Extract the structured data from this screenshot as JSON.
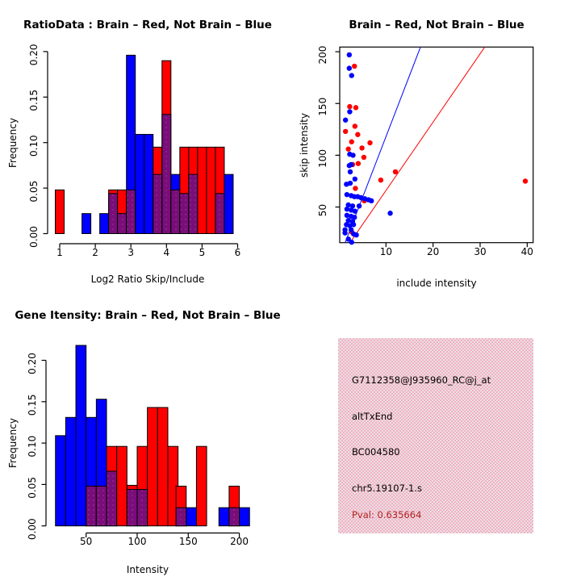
{
  "colors": {
    "brain_red": "#ff0000",
    "not_brain_blue": "#0000ff",
    "overlap_purple": "#7a0d7a",
    "overlap_dot": "#9b3f9b",
    "axis_black": "#000000",
    "info_bg_pink": "#f5afc4",
    "info_bg_gray": "#e7e2e4",
    "pval_text": "#b22222"
  },
  "info": {
    "lines": [
      "G7112358@J935960_RC@j_at",
      "altTxEnd",
      "BC004580",
      "chr5.19107-1.s"
    ],
    "pval": "Pval: 0.635664"
  },
  "chart_data": [
    {
      "type": "bar",
      "subtype": "overlaid-histograms",
      "title": "RatioData : Brain – Red, Not Brain – Blue",
      "xlabel": "Log2 Ratio Skip/Include",
      "ylabel": "Frequency",
      "legend": {
        "red": "Brain",
        "blue": "Not Brain"
      },
      "xlim": [
        0.66,
        6.1
      ],
      "ylim": [
        0,
        0.2
      ],
      "xticks": {
        "values": [
          1,
          2,
          3,
          4,
          5,
          6
        ],
        "labels": [
          "1",
          "2",
          "3",
          "4",
          "5",
          "6"
        ]
      },
      "yticks": {
        "values": [
          0,
          0.05,
          0.1,
          0.15,
          0.2
        ],
        "labels": [
          "0.00",
          "0.05",
          "0.10",
          "0.15",
          "0.20"
        ]
      },
      "bin_width": 0.25,
      "bins": [
        {
          "x0": 0.875,
          "x1": 1.125,
          "red": 0.048,
          "blue": 0
        },
        {
          "x0": 1.625,
          "x1": 1.875,
          "red": 0,
          "blue": 0.022
        },
        {
          "x0": 2.125,
          "x1": 2.375,
          "red": 0,
          "blue": 0.022
        },
        {
          "x0": 2.375,
          "x1": 2.625,
          "red": 0.048,
          "blue": 0.044
        },
        {
          "x0": 2.625,
          "x1": 2.875,
          "red": 0.048,
          "blue": 0.022
        },
        {
          "x0": 2.875,
          "x1": 3.125,
          "red": 0.048,
          "blue": 0.196
        },
        {
          "x0": 3.125,
          "x1": 3.375,
          "red": 0,
          "blue": 0.109
        },
        {
          "x0": 3.375,
          "x1": 3.625,
          "red": 0,
          "blue": 0.109
        },
        {
          "x0": 3.625,
          "x1": 3.875,
          "red": 0.095,
          "blue": 0.065
        },
        {
          "x0": 3.875,
          "x1": 4.125,
          "red": 0.19,
          "blue": 0.131
        },
        {
          "x0": 4.125,
          "x1": 4.375,
          "red": 0.048,
          "blue": 0.065
        },
        {
          "x0": 4.375,
          "x1": 4.625,
          "red": 0.095,
          "blue": 0.044
        },
        {
          "x0": 4.625,
          "x1": 4.875,
          "red": 0.095,
          "blue": 0.065
        },
        {
          "x0": 4.875,
          "x1": 5.125,
          "red": 0.095,
          "blue": 0
        },
        {
          "x0": 5.125,
          "x1": 5.375,
          "red": 0.095,
          "blue": 0
        },
        {
          "x0": 5.375,
          "x1": 5.625,
          "red": 0.095,
          "blue": 0.044
        },
        {
          "x0": 5.625,
          "x1": 5.875,
          "red": 0,
          "blue": 0.065
        }
      ]
    },
    {
      "type": "scatter",
      "title": "Brain – Red, Not Brain – Blue",
      "xlabel": "include intensity",
      "ylabel": "skip intensity",
      "xlim": [
        0.2,
        41.3
      ],
      "ylim": [
        15.6,
        204.5
      ],
      "xticks": {
        "values": [
          10,
          20,
          30,
          40
        ],
        "labels": [
          "10",
          "20",
          "30",
          "40"
        ]
      },
      "yticks": {
        "values": [
          50,
          100,
          150,
          200
        ],
        "labels": [
          "50",
          "100",
          "150",
          "200"
        ]
      },
      "ablines": [
        {
          "series": "Not Brain",
          "color_key": "blue",
          "slope": 11.8,
          "intercept": 0
        },
        {
          "series": "Brain",
          "color_key": "red",
          "slope": 6.6,
          "intercept": 0
        }
      ],
      "series": [
        {
          "name": "Brain",
          "color_key": "red",
          "points": [
            [
              3.3,
              186
            ],
            [
              2.3,
              147
            ],
            [
              3.6,
              146
            ],
            [
              3.4,
              128
            ],
            [
              1.4,
              123
            ],
            [
              4.0,
              120
            ],
            [
              2.7,
              113
            ],
            [
              6.6,
              112
            ],
            [
              2.0,
              106
            ],
            [
              4.9,
              107
            ],
            [
              5.3,
              98
            ],
            [
              4.1,
              92
            ],
            [
              2.9,
              91
            ],
            [
              12.0,
              84
            ],
            [
              8.9,
              76
            ],
            [
              39.6,
              75
            ],
            [
              3.5,
              68
            ],
            [
              5.4,
              56
            ],
            [
              2.7,
              26
            ]
          ]
        },
        {
          "name": "Not Brain",
          "color_key": "blue",
          "points": [
            [
              2.2,
              197
            ],
            [
              2.2,
              184
            ],
            [
              2.7,
              177
            ],
            [
              2.3,
              142
            ],
            [
              1.4,
              134
            ],
            [
              2.3,
              101
            ],
            [
              3.0,
              100
            ],
            [
              2.2,
              90
            ],
            [
              2.6,
              91
            ],
            [
              2.4,
              84
            ],
            [
              3.4,
              77
            ],
            [
              1.6,
              72
            ],
            [
              2.4,
              73
            ],
            [
              1.7,
              62
            ],
            [
              2.6,
              61
            ],
            [
              3.3,
              60
            ],
            [
              4.0,
              60
            ],
            [
              4.7,
              59
            ],
            [
              5.5,
              58
            ],
            [
              6.3,
              57
            ],
            [
              6.9,
              56
            ],
            [
              2.0,
              52
            ],
            [
              2.9,
              51
            ],
            [
              4.3,
              51
            ],
            [
              1.7,
              48
            ],
            [
              2.6,
              47
            ],
            [
              3.4,
              46
            ],
            [
              10.9,
              44
            ],
            [
              1.7,
              42
            ],
            [
              2.6,
              41
            ],
            [
              3.3,
              40
            ],
            [
              2.0,
              37
            ],
            [
              2.9,
              36
            ],
            [
              1.6,
              33
            ],
            [
              2.3,
              32
            ],
            [
              3.1,
              33
            ],
            [
              1.3,
              28
            ],
            [
              2.6,
              28
            ],
            [
              1.3,
              25
            ],
            [
              3.1,
              24
            ],
            [
              3.7,
              23
            ],
            [
              2.0,
              19
            ],
            [
              2.7,
              16
            ]
          ]
        }
      ]
    },
    {
      "type": "bar",
      "subtype": "overlaid-histograms",
      "title": "Gene Itensity: Brain – Red, Not Brain – Blue",
      "xlabel": "Intensity",
      "ylabel": "Frequency",
      "legend": {
        "red": "Brain",
        "blue": "Not Brain"
      },
      "xlim": [
        15,
        212
      ],
      "ylim": [
        0,
        0.22
      ],
      "xticks": {
        "values": [
          50,
          100,
          150,
          200
        ],
        "labels": [
          "50",
          "100",
          "150",
          "200"
        ]
      },
      "yticks": {
        "values": [
          0,
          0.05,
          0.1,
          0.15,
          0.2
        ],
        "labels": [
          "0.00",
          "0.05",
          "0.10",
          "0.15",
          "0.20"
        ]
      },
      "bin_width": 10,
      "bins": [
        {
          "x0": 20,
          "x1": 30,
          "red": 0,
          "blue": 0.109
        },
        {
          "x0": 30,
          "x1": 40,
          "red": 0,
          "blue": 0.131
        },
        {
          "x0": 40,
          "x1": 50,
          "red": 0,
          "blue": 0.218
        },
        {
          "x0": 50,
          "x1": 60,
          "red": 0.048,
          "blue": 0.131
        },
        {
          "x0": 60,
          "x1": 70,
          "red": 0.048,
          "blue": 0.153
        },
        {
          "x0": 70,
          "x1": 80,
          "red": 0.096,
          "blue": 0.066
        },
        {
          "x0": 80,
          "x1": 90,
          "red": 0.096,
          "blue": 0
        },
        {
          "x0": 90,
          "x1": 100,
          "red": 0.049,
          "blue": 0.044
        },
        {
          "x0": 100,
          "x1": 110,
          "red": 0.096,
          "blue": 0.044
        },
        {
          "x0": 110,
          "x1": 120,
          "red": 0.143,
          "blue": 0
        },
        {
          "x0": 120,
          "x1": 130,
          "red": 0.143,
          "blue": 0
        },
        {
          "x0": 130,
          "x1": 140,
          "red": 0.096,
          "blue": 0
        },
        {
          "x0": 138,
          "x1": 148,
          "red": 0.048,
          "blue": 0.022
        },
        {
          "x0": 148,
          "x1": 158,
          "red": 0,
          "blue": 0.022
        },
        {
          "x0": 158,
          "x1": 168,
          "red": 0.096,
          "blue": 0
        },
        {
          "x0": 180,
          "x1": 190,
          "red": 0,
          "blue": 0.022
        },
        {
          "x0": 190,
          "x1": 200,
          "red": 0.048,
          "blue": 0.022
        },
        {
          "x0": 200,
          "x1": 210,
          "red": 0,
          "blue": 0.022
        }
      ]
    }
  ]
}
